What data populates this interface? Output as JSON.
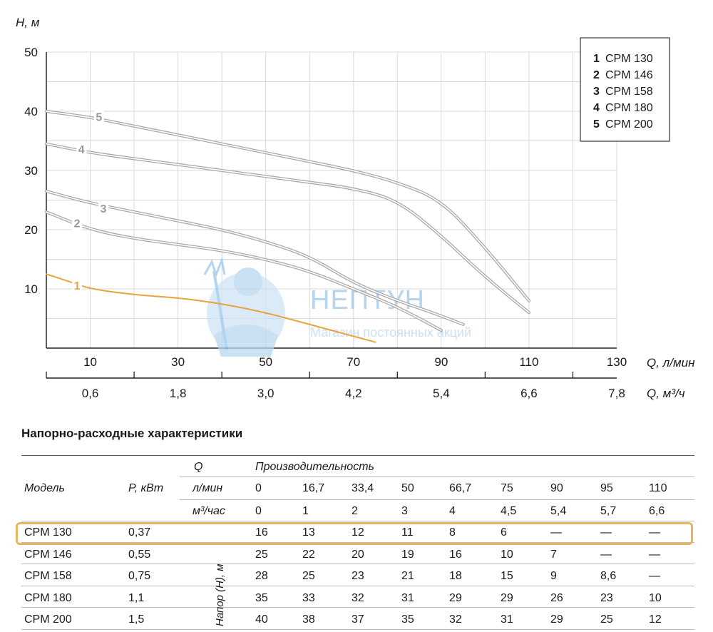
{
  "colors": {
    "accent_orange": "#e8a33d",
    "curve_gray": "#a9a9a9",
    "label_gray": "#9a9a9a",
    "grid": "#d9d9d9",
    "highlight_border": "#e8b661",
    "watermark_blue": "#9cc6ea"
  },
  "watermark": {
    "title": "НЕПТУН",
    "subtitle": "Магазин постоянных акций",
    "icon": "neptune-trident-figure-icon"
  },
  "chart_data": {
    "type": "line",
    "ylabel": "H, м",
    "xlabel": "Q, л/мин",
    "x2label": "Q, м³/ч",
    "xlim": [
      0,
      130
    ],
    "ylim": [
      0,
      50
    ],
    "yticks": [
      10,
      20,
      30,
      40,
      50
    ],
    "xticks": [
      10,
      30,
      50,
      70,
      90,
      110,
      130
    ],
    "x2ticks": [
      "0,6",
      "1,8",
      "3,0",
      "4,2",
      "5,4",
      "6,6",
      "7,8"
    ],
    "grid": true,
    "legend_position": "top-right",
    "series": [
      {
        "num": "1",
        "name": "CPM 130",
        "highlight": true,
        "points": [
          [
            0,
            12.5
          ],
          [
            5,
            11.3
          ],
          [
            10,
            10
          ],
          [
            20,
            9
          ],
          [
            30,
            8.5
          ],
          [
            40,
            7.5
          ],
          [
            50,
            6
          ],
          [
            60,
            4
          ],
          [
            75,
            1
          ]
        ]
      },
      {
        "num": "2",
        "name": "CPM 146",
        "points": [
          [
            0,
            23
          ],
          [
            10,
            20
          ],
          [
            20,
            18.5
          ],
          [
            30,
            17.5
          ],
          [
            40,
            16.5
          ],
          [
            50,
            15
          ],
          [
            60,
            13
          ],
          [
            70,
            10
          ],
          [
            80,
            7
          ],
          [
            90,
            3
          ]
        ]
      },
      {
        "num": "3",
        "name": "CPM 158",
        "points": [
          [
            0,
            26.5
          ],
          [
            10,
            24.5
          ],
          [
            20,
            23
          ],
          [
            30,
            21.5
          ],
          [
            40,
            20
          ],
          [
            50,
            18
          ],
          [
            60,
            15.5
          ],
          [
            70,
            11
          ],
          [
            80,
            8
          ],
          [
            88,
            6
          ],
          [
            95,
            4
          ]
        ]
      },
      {
        "num": "4",
        "name": "CPM 180",
        "points": [
          [
            0,
            34.5
          ],
          [
            10,
            33
          ],
          [
            20,
            32
          ],
          [
            30,
            31
          ],
          [
            40,
            30
          ],
          [
            50,
            29
          ],
          [
            60,
            28
          ],
          [
            70,
            27
          ],
          [
            80,
            25
          ],
          [
            90,
            19
          ],
          [
            100,
            12
          ],
          [
            110,
            6
          ]
        ]
      },
      {
        "num": "5",
        "name": "CPM 200",
        "points": [
          [
            0,
            40
          ],
          [
            10,
            39
          ],
          [
            20,
            37.5
          ],
          [
            30,
            36
          ],
          [
            40,
            34.5
          ],
          [
            50,
            33
          ],
          [
            60,
            31.5
          ],
          [
            70,
            30
          ],
          [
            80,
            28
          ],
          [
            90,
            25
          ],
          [
            100,
            17
          ],
          [
            110,
            8
          ]
        ]
      }
    ]
  },
  "table": {
    "title": "Напорно-расходные характеристики",
    "h_q": "Q",
    "h_performance": "Производительность",
    "h_model": "Модель",
    "h_power": "P, кВт",
    "unit_lmin": "л/мин",
    "unit_m3h": "м³/час",
    "vertical_label": "Напор (H), м",
    "lmin": [
      "0",
      "16,7",
      "33,4",
      "50",
      "66,7",
      "75",
      "90",
      "95",
      "110"
    ],
    "m3h": [
      "0",
      "1",
      "2",
      "3",
      "4",
      "4,5",
      "5,4",
      "5,7",
      "6,6"
    ],
    "rows": [
      {
        "model": "CPM 130",
        "power": "0,37",
        "values": [
          "16",
          "13",
          "12",
          "11",
          "8",
          "6",
          "—",
          "—",
          "—"
        ],
        "highlight": true
      },
      {
        "model": "CPM 146",
        "power": "0,55",
        "values": [
          "25",
          "22",
          "20",
          "19",
          "16",
          "10",
          "7",
          "—",
          "—"
        ]
      },
      {
        "model": "CPM 158",
        "power": "0,75",
        "values": [
          "28",
          "25",
          "23",
          "21",
          "18",
          "15",
          "9",
          "8,6",
          "—"
        ]
      },
      {
        "model": "CPM 180",
        "power": "1,1",
        "values": [
          "35",
          "33",
          "32",
          "31",
          "29",
          "29",
          "26",
          "23",
          "10"
        ]
      },
      {
        "model": "CPM 200",
        "power": "1,5",
        "values": [
          "40",
          "38",
          "37",
          "35",
          "32",
          "31",
          "29",
          "25",
          "12"
        ]
      }
    ]
  }
}
